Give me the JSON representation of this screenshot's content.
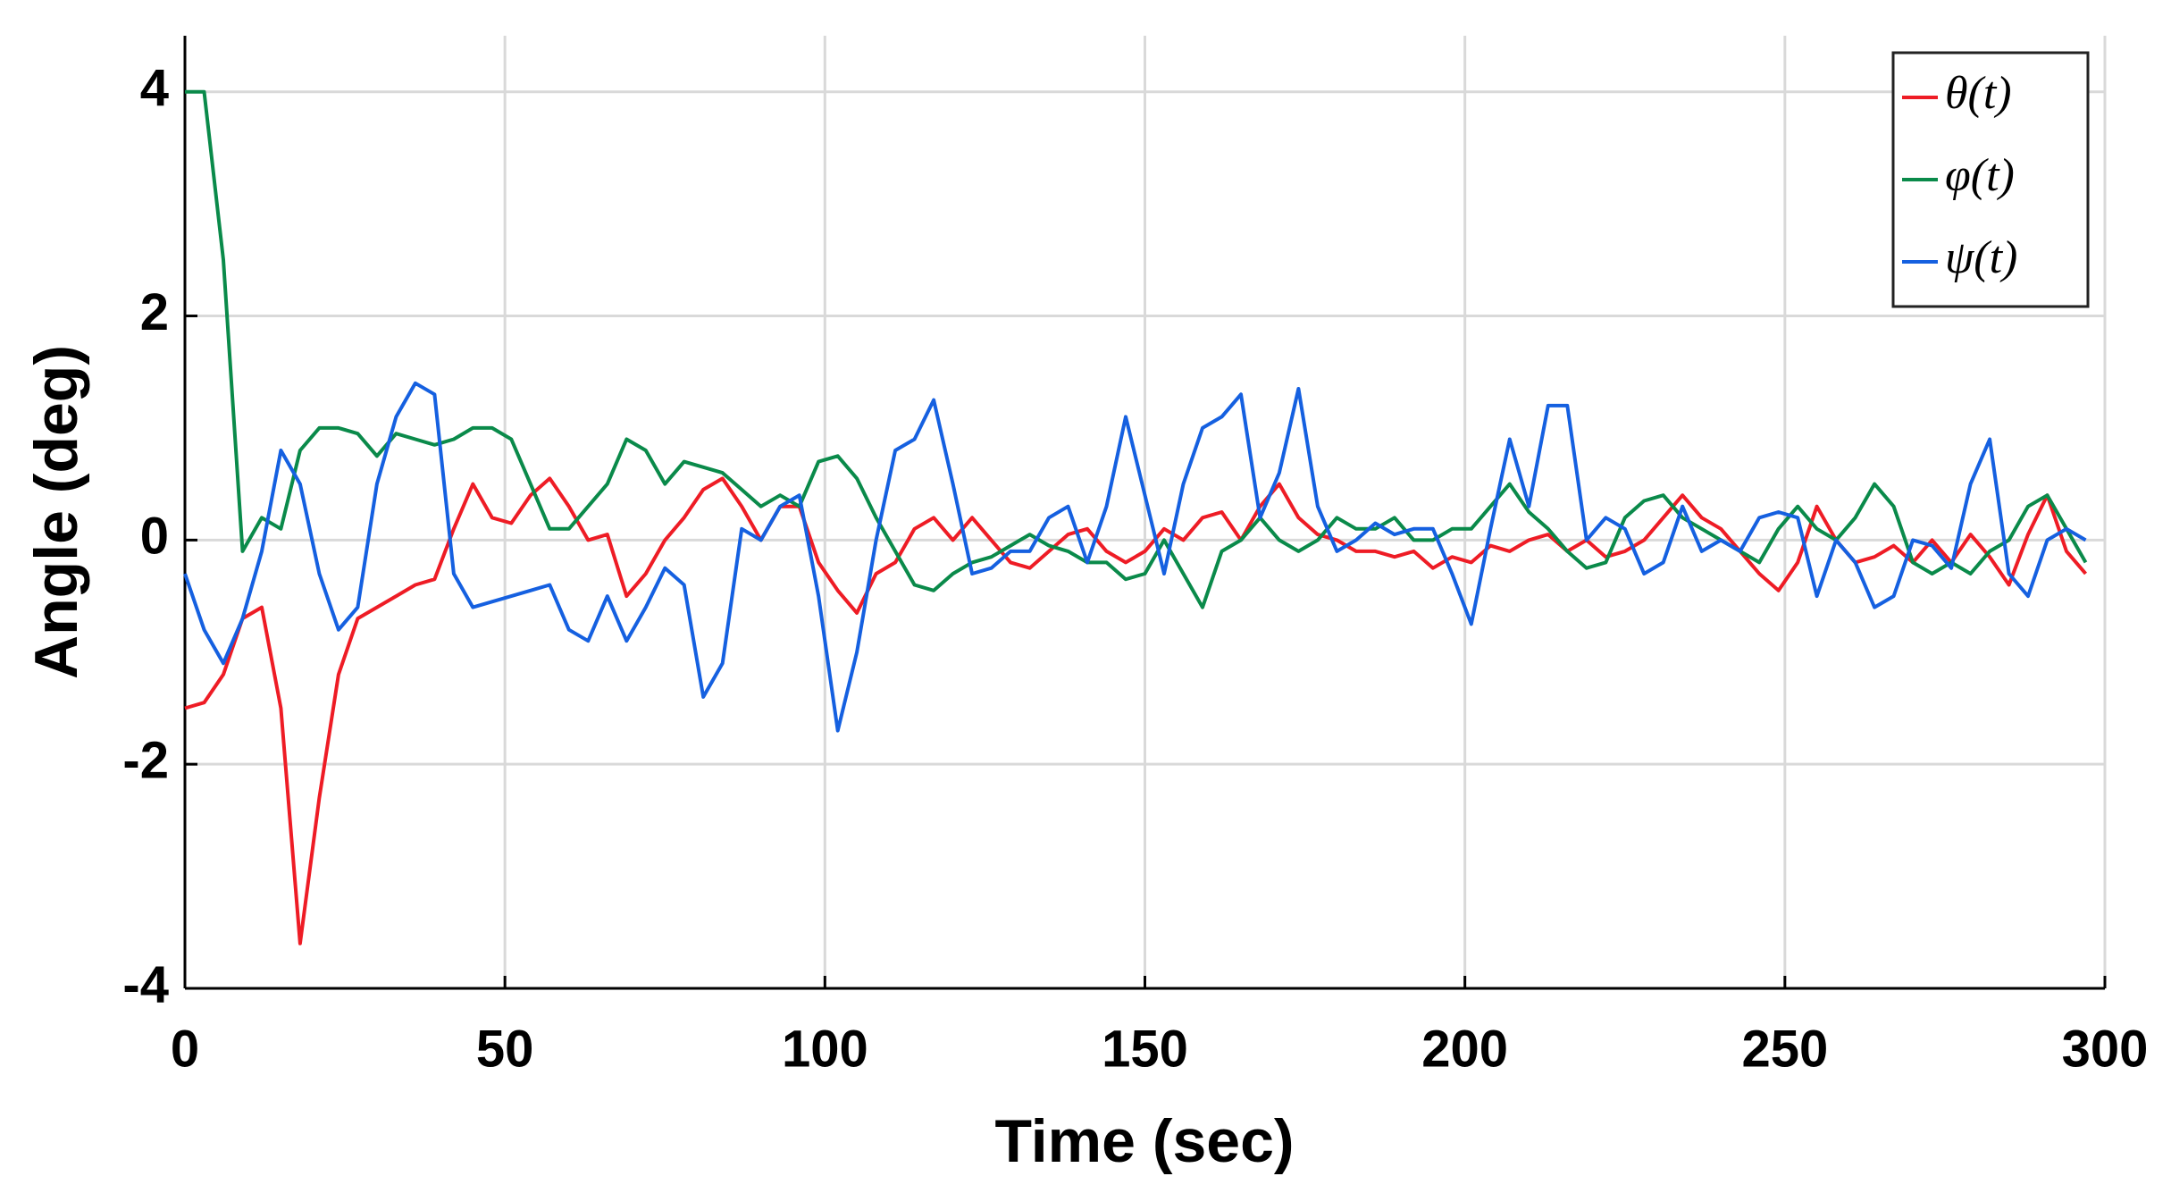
{
  "chart_data": {
    "type": "line",
    "xlabel": "Time (sec)",
    "ylabel": "Angle (deg)",
    "xlim": [
      0,
      300
    ],
    "xticks": [
      0,
      50,
      100,
      150,
      200,
      250,
      300
    ],
    "ylim": [
      -4,
      4.5
    ],
    "yticks": [
      -4,
      -2,
      0,
      2,
      4
    ],
    "grid": true,
    "legend": "upper right",
    "x": [
      0,
      3,
      6,
      9,
      12,
      15,
      18,
      21,
      24,
      27,
      30,
      33,
      36,
      39,
      42,
      45,
      48,
      51,
      54,
      57,
      60,
      63,
      66,
      69,
      72,
      75,
      78,
      81,
      84,
      87,
      90,
      93,
      96,
      99,
      102,
      105,
      108,
      111,
      114,
      117,
      120,
      123,
      126,
      129,
      132,
      135,
      138,
      141,
      144,
      147,
      150,
      153,
      156,
      159,
      162,
      165,
      168,
      171,
      174,
      177,
      180,
      183,
      186,
      189,
      192,
      195,
      198,
      201,
      204,
      207,
      210,
      213,
      216,
      219,
      222,
      225,
      228,
      231,
      234,
      237,
      240,
      243,
      246,
      249,
      252,
      255,
      258,
      261,
      264,
      267,
      270,
      273,
      276,
      279,
      282,
      285,
      288,
      291,
      294,
      297
    ],
    "series": [
      {
        "name": "θ(t)",
        "color": "#ee1c25",
        "values": [
          -1.5,
          -1.45,
          -1.2,
          -0.7,
          -0.6,
          -1.5,
          -3.6,
          -2.3,
          -1.2,
          -0.7,
          -0.6,
          -0.5,
          -0.4,
          -0.35,
          0.1,
          0.5,
          0.2,
          0.15,
          0.4,
          0.55,
          0.3,
          0.0,
          0.05,
          -0.5,
          -0.3,
          0.0,
          0.2,
          0.45,
          0.55,
          0.3,
          0.0,
          0.3,
          0.3,
          -0.2,
          -0.45,
          -0.65,
          -0.3,
          -0.2,
          0.1,
          0.2,
          0.0,
          0.2,
          0.0,
          -0.2,
          -0.25,
          -0.1,
          0.05,
          0.1,
          -0.1,
          -0.2,
          -0.1,
          0.1,
          0.0,
          0.2,
          0.25,
          0.0,
          0.3,
          0.5,
          0.2,
          0.05,
          0.0,
          -0.1,
          -0.1,
          -0.15,
          -0.1,
          -0.25,
          -0.15,
          -0.2,
          -0.05,
          -0.1,
          0.0,
          0.05,
          -0.1,
          0.0,
          -0.15,
          -0.1,
          0.0,
          0.2,
          0.4,
          0.2,
          0.1,
          -0.1,
          -0.3,
          -0.45,
          -0.2,
          0.3,
          0.0,
          -0.2,
          -0.15,
          -0.05,
          -0.2,
          0.0,
          -0.2,
          0.05,
          -0.15,
          -0.4,
          0.05,
          0.4,
          -0.1,
          -0.3
        ]
      },
      {
        "name": "φ(t)",
        "color": "#0a8a4a",
        "values": [
          4.0,
          4.0,
          2.5,
          -0.1,
          0.2,
          0.1,
          0.8,
          1.0,
          1.0,
          0.95,
          0.75,
          0.95,
          0.9,
          0.85,
          0.9,
          1.0,
          1.0,
          0.9,
          0.5,
          0.1,
          0.1,
          0.3,
          0.5,
          0.9,
          0.8,
          0.5,
          0.7,
          0.65,
          0.6,
          0.45,
          0.3,
          0.4,
          0.3,
          0.7,
          0.75,
          0.55,
          0.2,
          -0.1,
          -0.4,
          -0.45,
          -0.3,
          -0.2,
          -0.15,
          -0.05,
          0.05,
          -0.05,
          -0.1,
          -0.2,
          -0.2,
          -0.35,
          -0.3,
          0.0,
          -0.3,
          -0.6,
          -0.1,
          0.0,
          0.2,
          0.0,
          -0.1,
          0.0,
          0.2,
          0.1,
          0.1,
          0.2,
          0.0,
          0.0,
          0.1,
          0.1,
          0.3,
          0.5,
          0.25,
          0.1,
          -0.1,
          -0.25,
          -0.2,
          0.2,
          0.35,
          0.4,
          0.2,
          0.1,
          0.0,
          -0.1,
          -0.2,
          0.1,
          0.3,
          0.1,
          0.0,
          0.2,
          0.5,
          0.3,
          -0.2,
          -0.3,
          -0.2,
          -0.3,
          -0.1,
          0.0,
          0.3,
          0.4,
          0.1,
          -0.2
        ]
      },
      {
        "name": "ψ(t)",
        "color": "#1560e0",
        "values": [
          -0.3,
          -0.8,
          -1.1,
          -0.7,
          -0.1,
          0.8,
          0.5,
          -0.3,
          -0.8,
          -0.6,
          0.5,
          1.1,
          1.4,
          1.3,
          -0.3,
          -0.6,
          -0.55,
          -0.5,
          -0.45,
          -0.4,
          -0.8,
          -0.9,
          -0.5,
          -0.9,
          -0.6,
          -0.25,
          -0.4,
          -1.4,
          -1.1,
          0.1,
          0.0,
          0.3,
          0.4,
          -0.5,
          -1.7,
          -1.0,
          0.0,
          0.8,
          0.9,
          1.25,
          0.5,
          -0.3,
          -0.25,
          -0.1,
          -0.1,
          0.2,
          0.3,
          -0.2,
          0.3,
          1.1,
          0.4,
          -0.3,
          0.5,
          1.0,
          1.1,
          1.3,
          0.2,
          0.6,
          1.35,
          0.3,
          -0.1,
          0.0,
          0.15,
          0.05,
          0.1,
          0.1,
          -0.3,
          -0.75,
          0.1,
          0.9,
          0.3,
          1.2,
          1.2,
          0.0,
          0.2,
          0.1,
          -0.3,
          -0.2,
          0.3,
          -0.1,
          0.0,
          -0.1,
          0.2,
          0.25,
          0.2,
          -0.5,
          0.0,
          -0.2,
          -0.6,
          -0.5,
          0.0,
          -0.05,
          -0.25,
          0.5,
          0.9,
          -0.3,
          -0.5,
          0.0,
          0.1,
          0.0
        ]
      }
    ]
  }
}
